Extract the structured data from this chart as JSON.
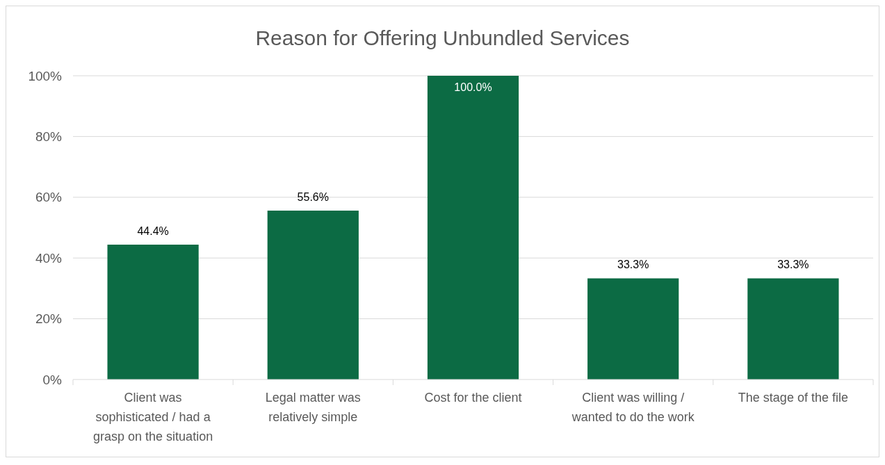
{
  "chart_data": {
    "type": "bar",
    "title": "Reason for Offering Unbundled Services",
    "categories": [
      "Client was sophisticated / had a grasp on the situation",
      "Legal matter was relatively simple",
      "Cost for the client",
      "Client was willing / wanted to do the work",
      "The stage of the file"
    ],
    "values": [
      44.4,
      55.6,
      100.0,
      33.3,
      33.3
    ],
    "value_labels": [
      "44.4%",
      "55.6%",
      "100.0%",
      "33.3%",
      "33.3%"
    ],
    "color": "#0c6b44",
    "ylim": [
      0,
      100
    ],
    "yticks": [
      {
        "value": 0,
        "label": "0%"
      },
      {
        "value": 20,
        "label": "20%"
      },
      {
        "value": 40,
        "label": "40%"
      },
      {
        "value": 60,
        "label": "60%"
      },
      {
        "value": 80,
        "label": "80%"
      },
      {
        "value": 100,
        "label": "100%"
      }
    ],
    "grid": "y"
  }
}
